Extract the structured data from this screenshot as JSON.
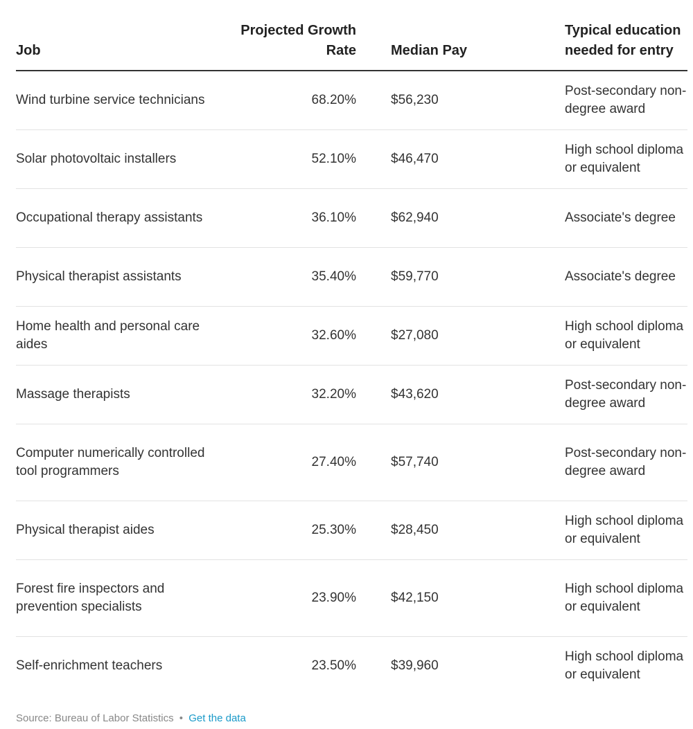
{
  "chart_data": {
    "type": "table",
    "columns": [
      "Job",
      "Projected Growth Rate",
      "Median Pay",
      "Typical education needed for entry"
    ],
    "rows": [
      {
        "job": "Wind turbine service technicians",
        "growth_rate": "68.20%",
        "median_pay": "$56,230",
        "education": "Post-secondary non-degree award"
      },
      {
        "job": "Solar photovoltaic installers",
        "growth_rate": "52.10%",
        "median_pay": "$46,470",
        "education": "High school diploma or equivalent"
      },
      {
        "job": "Occupational therapy assistants",
        "growth_rate": "36.10%",
        "median_pay": "$62,940",
        "education": "Associate's degree"
      },
      {
        "job": "Physical therapist assistants",
        "growth_rate": "35.40%",
        "median_pay": "$59,770",
        "education": "Associate's degree"
      },
      {
        "job": "Home health and personal care aides",
        "growth_rate": "32.60%",
        "median_pay": "$27,080",
        "education": "High school diploma or equivalent"
      },
      {
        "job": "Massage therapists",
        "growth_rate": "32.20%",
        "median_pay": "$43,620",
        "education": "Post-secondary non-degree award"
      },
      {
        "job": "Computer numerically controlled tool programmers",
        "growth_rate": "27.40%",
        "median_pay": "$57,740",
        "education": "Post-secondary non-degree award"
      },
      {
        "job": "Physical therapist aides",
        "growth_rate": "25.30%",
        "median_pay": "$28,450",
        "education": "High school diploma or equivalent"
      },
      {
        "job": "Forest fire inspectors and prevention specialists",
        "growth_rate": "23.90%",
        "median_pay": "$42,150",
        "education": "High school diploma or equivalent"
      },
      {
        "job": "Self-enrichment teachers",
        "growth_rate": "23.50%",
        "median_pay": "$39,960",
        "education": "High school diploma or equivalent"
      }
    ]
  },
  "footer": {
    "source": "Source: Bureau of Labor Statistics",
    "separator": "•",
    "link": "Get the data"
  },
  "colors": {
    "text": "#333333",
    "header_rule": "#333333",
    "row_rule": "#e2e2e2",
    "footer_text": "#888888",
    "link": "#1a9ac9"
  }
}
